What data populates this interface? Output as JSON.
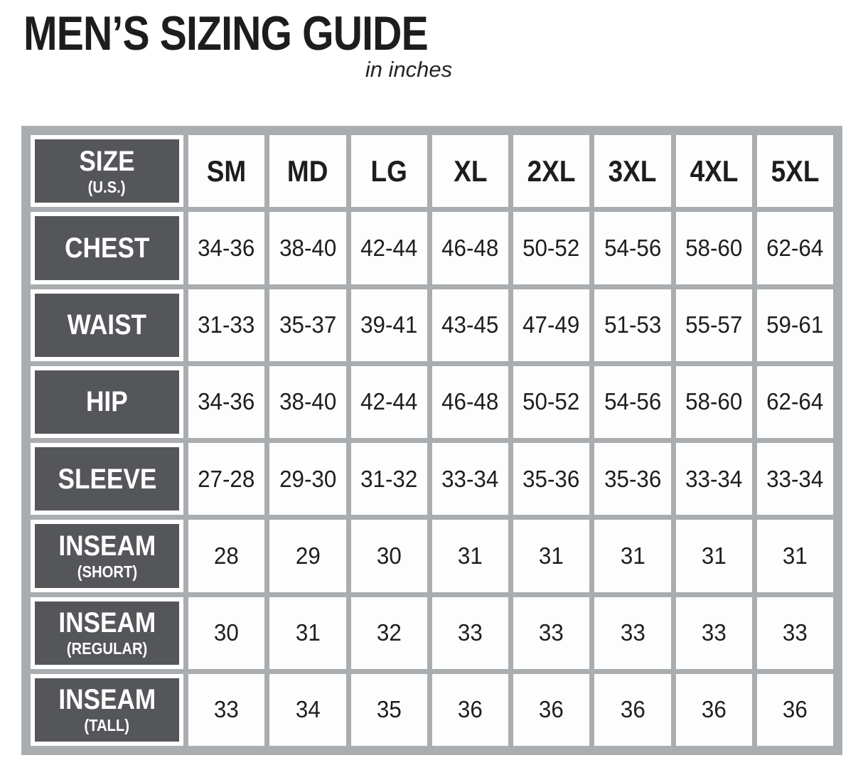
{
  "page": {
    "title": "MEN’S SIZING GUIDE",
    "subtitle": "in inches"
  },
  "table": {
    "header": {
      "label": "SIZE",
      "sublabel": "(U.S.)",
      "columns": [
        "SM",
        "MD",
        "LG",
        "XL",
        "2XL",
        "3XL",
        "4XL",
        "5XL"
      ]
    },
    "rows": [
      {
        "label": "CHEST",
        "sublabel": "",
        "values": [
          "34-36",
          "38-40",
          "42-44",
          "46-48",
          "50-52",
          "54-56",
          "58-60",
          "62-64"
        ]
      },
      {
        "label": "WAIST",
        "sublabel": "",
        "values": [
          "31-33",
          "35-37",
          "39-41",
          "43-45",
          "47-49",
          "51-53",
          "55-57",
          "59-61"
        ]
      },
      {
        "label": "HIP",
        "sublabel": "",
        "values": [
          "34-36",
          "38-40",
          "42-44",
          "46-48",
          "50-52",
          "54-56",
          "58-60",
          "62-64"
        ]
      },
      {
        "label": "SLEEVE",
        "sublabel": "",
        "values": [
          "27-28",
          "29-30",
          "31-32",
          "33-34",
          "35-36",
          "35-36",
          "33-34",
          "33-34"
        ]
      },
      {
        "label": "INSEAM",
        "sublabel": "(SHORT)",
        "values": [
          "28",
          "29",
          "30",
          "31",
          "31",
          "31",
          "31",
          "31"
        ]
      },
      {
        "label": "INSEAM",
        "sublabel": "(REGULAR)",
        "values": [
          "30",
          "31",
          "32",
          "33",
          "33",
          "33",
          "33",
          "33"
        ]
      },
      {
        "label": "INSEAM",
        "sublabel": "(TALL)",
        "values": [
          "33",
          "34",
          "35",
          "36",
          "36",
          "36",
          "36",
          "36"
        ]
      }
    ],
    "colors": {
      "frame_gray": "#a9adb0",
      "label_dark": "#55565a",
      "cell_white": "#fdfdfd",
      "text_dark": "#1d1e20"
    }
  }
}
